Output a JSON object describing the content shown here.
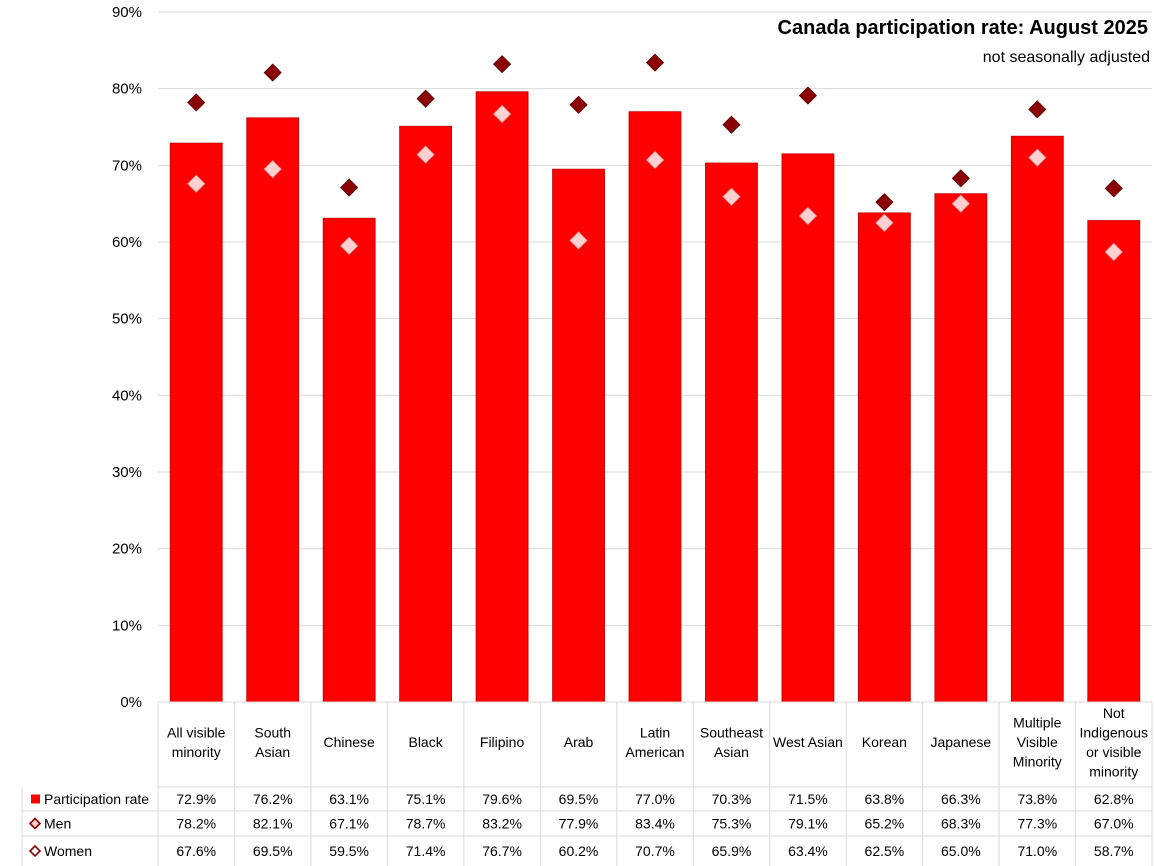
{
  "chart_data": {
    "type": "bar",
    "title": "Canada participation rate: August 2025",
    "subtitle": "not seasonally adjusted",
    "categories": [
      [
        "All visible",
        "minority"
      ],
      [
        "South",
        "Asian"
      ],
      [
        "Chinese"
      ],
      [
        "Black"
      ],
      [
        "Filipino"
      ],
      [
        "Arab"
      ],
      [
        "Latin",
        "American"
      ],
      [
        "Southeast",
        "Asian"
      ],
      [
        "West Asian"
      ],
      [
        "Korean"
      ],
      [
        "Japanese"
      ],
      [
        "Multiple",
        "Visible",
        "Minority"
      ],
      [
        "Not",
        "Indigenous",
        "or visible",
        "minority"
      ]
    ],
    "ylim": [
      0,
      90
    ],
    "yticks": [
      0,
      10,
      20,
      30,
      40,
      50,
      60,
      70,
      80,
      90
    ],
    "ytick_suffix": "%",
    "grid": true,
    "legend": "table-bottom",
    "series": [
      {
        "name": "Participation rate",
        "kind": "bar",
        "color": "#ff0000",
        "values": [
          72.9,
          76.2,
          63.1,
          75.1,
          79.6,
          69.5,
          77.0,
          70.3,
          71.5,
          63.8,
          66.3,
          73.8,
          62.8
        ],
        "labels": [
          "72.9%",
          "76.2%",
          "63.1%",
          "75.1%",
          "79.6%",
          "69.5%",
          "77.0%",
          "70.3%",
          "71.5%",
          "63.8%",
          "66.3%",
          "73.8%",
          "62.8%"
        ]
      },
      {
        "name": "Men",
        "kind": "marker",
        "color": "#8b0000",
        "values": [
          78.2,
          82.1,
          67.1,
          78.7,
          83.2,
          77.9,
          83.4,
          75.3,
          79.1,
          65.2,
          68.3,
          77.3,
          67.0
        ],
        "labels": [
          "78.2%",
          "82.1%",
          "67.1%",
          "78.7%",
          "83.2%",
          "77.9%",
          "83.4%",
          "75.3%",
          "79.1%",
          "65.2%",
          "68.3%",
          "77.3%",
          "67.0%"
        ]
      },
      {
        "name": "Women",
        "kind": "marker",
        "color": "#ffd0d0",
        "values": [
          67.6,
          69.5,
          59.5,
          71.4,
          76.7,
          60.2,
          70.7,
          65.9,
          63.4,
          62.5,
          65.0,
          71.0,
          58.7
        ],
        "labels": [
          "67.6%",
          "69.5%",
          "59.5%",
          "71.4%",
          "76.7%",
          "60.2%",
          "70.7%",
          "65.9%",
          "63.4%",
          "62.5%",
          "65.0%",
          "71.0%",
          "58.7%"
        ]
      }
    ]
  }
}
